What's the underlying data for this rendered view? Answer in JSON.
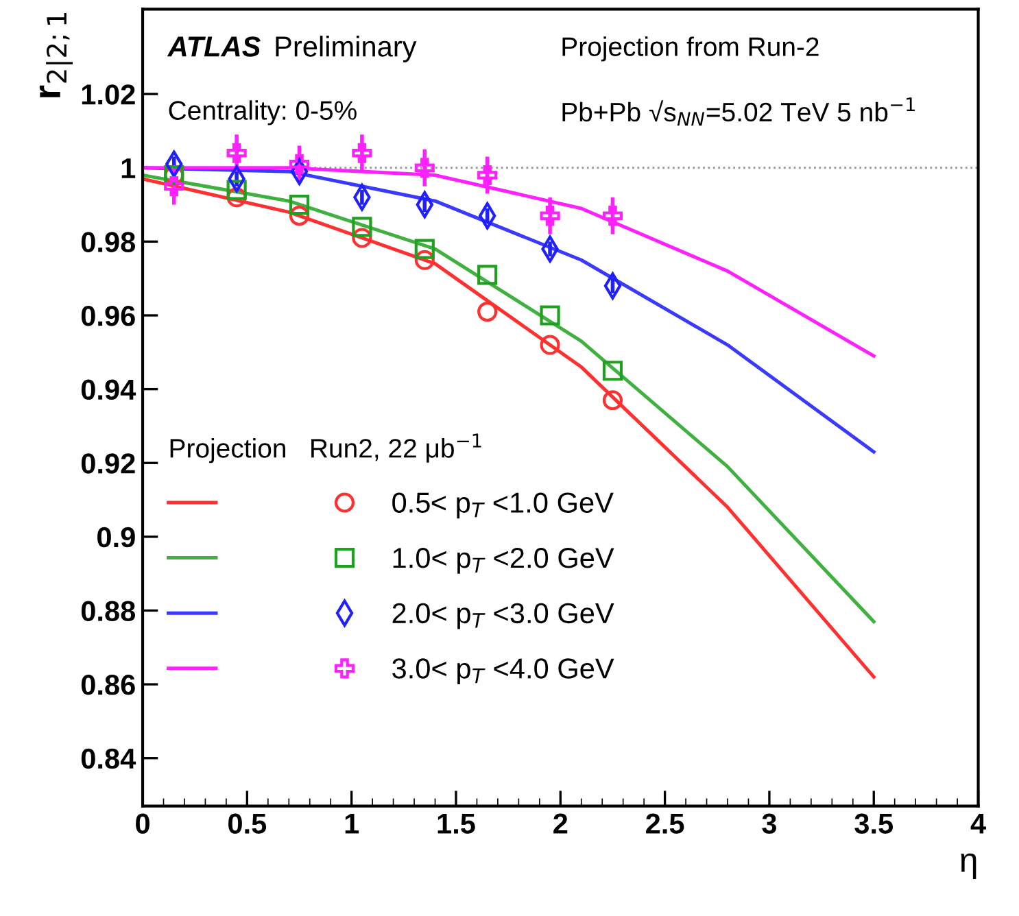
{
  "chart_data": {
    "type": "line",
    "xlabel": "η",
    "ylabel": "r$_{2|2;1}$",
    "legend_title": "Projection   Run2, 22 μb$^{−1}$",
    "annotations": [
      "ATLAS Preliminary",
      "Centrality: 0-5%",
      "Projection from Run-2",
      "Pb+Pb √s$_{NN}$=5.02 TeV 5 nb$^{−1}$"
    ],
    "xlim": [
      0,
      4
    ],
    "ylim": [
      0.827,
      1.043
    ],
    "xticks": [
      0,
      0.5,
      1,
      1.5,
      2,
      2.5,
      3,
      3.5,
      4
    ],
    "yticks": [
      0.84,
      0.86,
      0.88,
      0.9,
      0.92,
      0.94,
      0.96,
      0.98,
      1,
      1.02
    ],
    "legend": "left",
    "grid": false,
    "ref_lines": [
      {
        "axis": "y",
        "value": 1,
        "color": "#999999",
        "line_style": "dotted"
      }
    ],
    "series": [
      {
        "color": "#ff3030",
        "x": [
          0,
          0.7,
          1.4,
          2.1,
          2.8,
          3.5
        ],
        "values": [
          0.997,
          0.988,
          0.974,
          0.946,
          0.908,
          0.862
        ]
      },
      {
        "color": "#40b040",
        "x": [
          0,
          0.7,
          1.4,
          2.1,
          2.8,
          3.5
        ],
        "values": [
          0.998,
          0.991,
          0.978,
          0.953,
          0.919,
          0.877
        ]
      },
      {
        "color": "#3a3aff",
        "x": [
          0,
          0.7,
          1.4,
          2.1,
          2.8,
          3.5
        ],
        "values": [
          1.0,
          0.999,
          0.991,
          0.975,
          0.952,
          0.923
        ]
      },
      {
        "color": "#ff20ff",
        "x": [
          0,
          0.7,
          1.4,
          2.1,
          2.8,
          3.5
        ],
        "values": [
          1.0,
          1.0,
          0.998,
          0.989,
          0.972,
          0.949
        ]
      },
      {
        "type": "scatter",
        "name": "0.5< p$_{T}$ <1.0 GeV",
        "color": "#ff3030",
        "marker": "circle",
        "x": [
          0.15,
          0.45,
          0.75,
          1.05,
          1.35,
          1.65,
          1.95,
          2.25
        ],
        "values": [
          0.998,
          0.992,
          0.987,
          0.981,
          0.975,
          0.961,
          0.952,
          0.937
        ]
      },
      {
        "type": "scatter",
        "name": "1.0< p$_{T}$ <2.0 GeV",
        "color": "#20a020",
        "marker": "square",
        "x": [
          0.15,
          0.45,
          0.75,
          1.05,
          1.35,
          1.65,
          1.95,
          2.25
        ],
        "values": [
          0.998,
          0.994,
          0.99,
          0.984,
          0.978,
          0.971,
          0.96,
          0.945
        ]
      },
      {
        "type": "scatter",
        "name": "2.0< p$_{T}$ <3.0 GeV",
        "color": "#2020ff",
        "marker": "diamond",
        "x": [
          0.15,
          0.45,
          0.75,
          1.05,
          1.35,
          1.65,
          1.95,
          2.25
        ],
        "values": [
          1.001,
          0.997,
          0.999,
          0.992,
          0.99,
          0.987,
          0.978,
          0.968
        ],
        "errors": [
          0.002,
          0.002,
          0.002,
          0.002,
          0.002,
          0.002,
          0.002,
          0.002
        ]
      },
      {
        "type": "scatter",
        "name": "3.0< p$_{T}$ <4.0 GeV",
        "color": "#ff20ff",
        "marker": "cross",
        "x": [
          0.15,
          0.45,
          0.75,
          1.05,
          1.35,
          1.65,
          1.95,
          2.25
        ],
        "values": [
          0.995,
          1.004,
          1.001,
          1.004,
          1.0,
          0.998,
          0.987,
          0.987
        ],
        "errors": [
          0.005,
          0.005,
          0.005,
          0.005,
          0.005,
          0.005,
          0.005,
          0.005
        ]
      }
    ]
  }
}
